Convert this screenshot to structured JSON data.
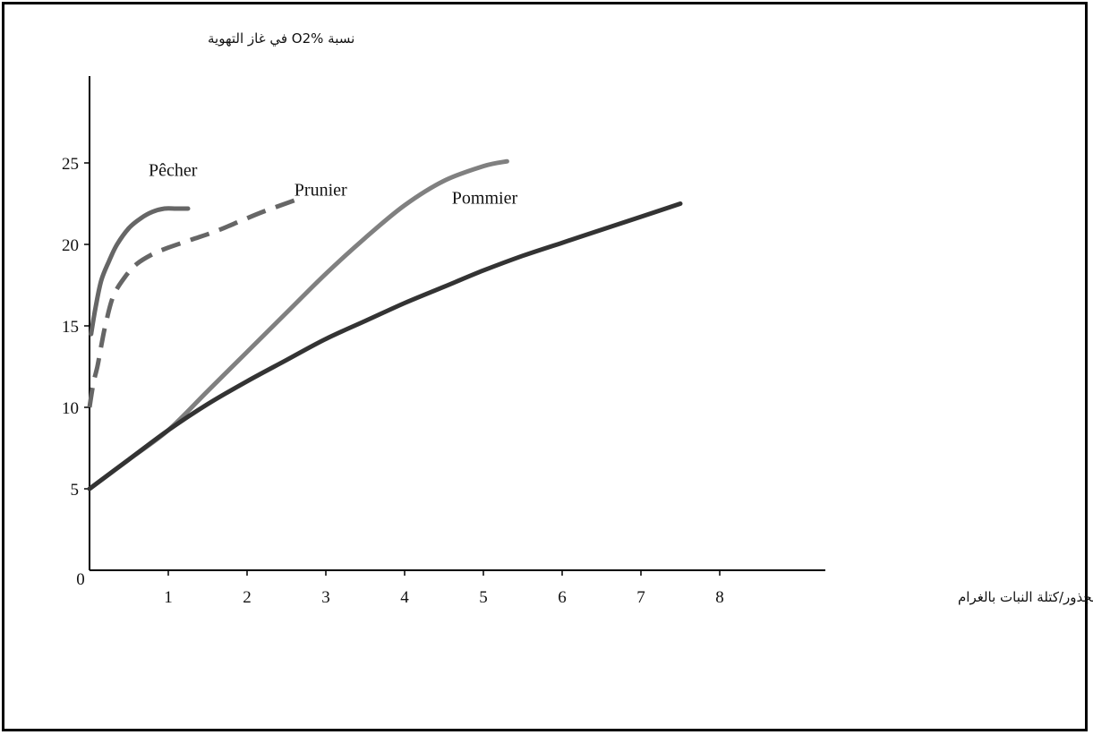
{
  "chart_data": {
    "type": "line",
    "ylabel": "نسبة O2% في غاز التهوية",
    "xlabel": "كتلة الجذور/كتلة النبات بالغرام",
    "xlim": [
      0,
      9.5
    ],
    "ylim": [
      0,
      30
    ],
    "x_ticks": [
      0,
      1,
      2,
      3,
      4,
      5,
      6,
      7,
      8
    ],
    "x_tick_labels": [
      "0",
      "1",
      "2",
      "3",
      "4",
      "5",
      "6",
      "7",
      "8"
    ],
    "y_ticks": [
      5,
      10,
      15,
      20,
      25
    ],
    "y_tick_labels": [
      "5",
      "10",
      "15",
      "20",
      "25"
    ],
    "grid": false,
    "legend": "inline labels",
    "series": [
      {
        "name": "Pêcher",
        "style": "solid",
        "color": "#666666",
        "label_at": [
          0.75,
          24.2
        ],
        "x": [
          0.02,
          0.08,
          0.15,
          0.25,
          0.35,
          0.5,
          0.65,
          0.8,
          0.95,
          1.1,
          1.25
        ],
        "y": [
          14.5,
          16.2,
          17.8,
          19.0,
          20.0,
          21.0,
          21.6,
          22.0,
          22.2,
          22.2,
          22.2
        ]
      },
      {
        "name": "Prunier",
        "style": "dashed",
        "color": "#666666",
        "label_at": [
          2.6,
          23.0
        ],
        "x": [
          0.0,
          0.05,
          0.1,
          0.15,
          0.2,
          0.3,
          0.45,
          0.6,
          0.8,
          1.0,
          1.3,
          1.6,
          1.9,
          2.2,
          2.6
        ],
        "y": [
          10.0,
          11.5,
          12.5,
          13.8,
          15.0,
          16.8,
          18.0,
          18.8,
          19.4,
          19.8,
          20.3,
          20.8,
          21.4,
          22.0,
          22.7
        ]
      },
      {
        "name": "",
        "style": "solid",
        "color": "#808080",
        "x": [
          0.0,
          0.5,
          1.0,
          1.5,
          2.0,
          2.5,
          3.0,
          3.5,
          4.0,
          4.5,
          5.0,
          5.3
        ],
        "y": [
          5.0,
          6.8,
          8.6,
          11.0,
          13.4,
          15.8,
          18.2,
          20.4,
          22.4,
          23.9,
          24.8,
          25.1
        ]
      },
      {
        "name": "Pommier",
        "style": "solid",
        "color": "#333333",
        "label_at": [
          4.6,
          22.5
        ],
        "x": [
          0.0,
          0.5,
          1.0,
          1.5,
          2.0,
          2.5,
          3.0,
          3.5,
          4.0,
          4.5,
          5.0,
          5.5,
          6.0,
          6.5,
          7.0,
          7.5
        ],
        "y": [
          5.0,
          6.8,
          8.6,
          10.2,
          11.6,
          12.9,
          14.2,
          15.3,
          16.4,
          17.4,
          18.4,
          19.3,
          20.1,
          20.9,
          21.7,
          22.5
        ]
      }
    ]
  }
}
